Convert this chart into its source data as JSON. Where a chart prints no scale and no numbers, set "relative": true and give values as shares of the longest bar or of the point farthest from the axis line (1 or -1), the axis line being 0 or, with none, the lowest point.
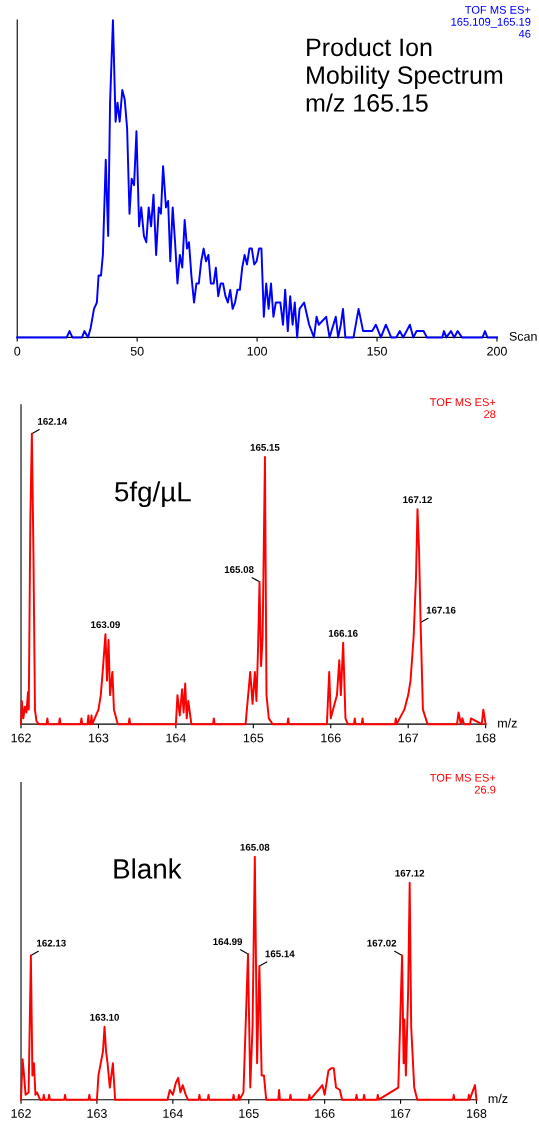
{
  "chart_data": [
    {
      "type": "line",
      "title": "Product Ion\nMobility Spectrum\nm/z 165.15",
      "xlabel": "Scan",
      "relative": true,
      "xlim": [
        0,
        200
      ],
      "xticks": [
        0,
        50,
        100,
        150,
        200
      ],
      "annotations": [
        "TOF MS ES+\n165.109_165.19\n46"
      ],
      "series": [
        {
          "color": "#0000ff",
          "x": [
            0,
            20.6,
            21.8,
            23,
            27,
            28,
            29.5,
            30.6,
            32,
            33.2,
            33.9,
            34.9,
            35.7,
            36.9,
            37.9,
            38.7,
            39.9,
            41,
            41.8,
            42.7,
            43.8,
            44.8,
            45.8,
            46.8,
            47.7,
            48.7,
            49.7,
            50.8,
            51.7,
            52.8,
            53.8,
            54.8,
            55.8,
            56.8,
            57.9,
            59,
            59.9,
            60.8,
            62,
            62.9,
            63.8,
            64.8,
            65.8,
            66.8,
            67.8,
            68.8,
            69.8,
            70.8,
            71.6,
            72.6,
            73.7,
            74.7,
            75.7,
            76.7,
            77.7,
            78.7,
            79.7,
            80.7,
            81.9,
            82.8,
            83.8,
            84.8,
            85.8,
            86.8,
            87.8,
            88.8,
            89.8,
            90.8,
            91.8,
            92.8,
            93.8,
            94.8,
            95.8,
            96.8,
            97.8,
            98.8,
            99.8,
            100.8,
            101.8,
            102.8,
            103.8,
            104.8,
            105.8,
            106.8,
            107.8,
            109.7,
            110.8,
            111.7,
            112.8,
            113.8,
            114.8,
            115.7,
            116.7,
            117.7,
            119.6,
            121.7,
            123.7,
            124.8,
            125.7,
            128.8,
            130.2,
            132.8,
            133.8,
            134.9,
            135.8,
            136.8,
            140.2,
            142.3,
            144.2,
            148,
            149.5,
            151.6,
            153.7,
            155.9,
            158,
            159.5,
            160.9,
            163.7,
            165.1,
            166.5,
            168,
            169.4,
            170.8,
            177.2,
            177.9,
            178.9,
            180.8,
            182.2,
            183.6,
            185.4,
            194,
            195,
            196,
            200
          ],
          "values": [
            0,
            0,
            0.02,
            0,
            0,
            0.02,
            0,
            0.03,
            0.09,
            0.11,
            0.195,
            0.195,
            0.26,
            0.56,
            0.32,
            0.74,
            1.0,
            0.68,
            0.74,
            0.68,
            0.78,
            0.75,
            0.66,
            0.39,
            0.5,
            0.48,
            0.65,
            0.35,
            0.41,
            0.32,
            0.3,
            0.41,
            0.35,
            0.45,
            0.26,
            0.41,
            0.39,
            0.54,
            0.41,
            0.43,
            0.24,
            0.41,
            0.3,
            0.17,
            0.26,
            0.22,
            0.37,
            0.28,
            0.3,
            0.195,
            0.11,
            0.17,
            0.17,
            0.24,
            0.28,
            0.24,
            0.26,
            0.17,
            0.17,
            0.22,
            0.13,
            0.17,
            0.17,
            0.13,
            0.11,
            0.15,
            0.09,
            0.11,
            0.15,
            0.15,
            0.22,
            0.26,
            0.23,
            0.28,
            0.28,
            0.23,
            0.24,
            0.28,
            0.28,
            0.065,
            0.17,
            0.09,
            0.17,
            0.065,
            0.11,
            0.11,
            0.04,
            0.15,
            0.02,
            0.13,
            0.04,
            0.11,
            0,
            0.09,
            0.11,
            0.04,
            0,
            0.065,
            0.04,
            0.065,
            0,
            0.065,
            0,
            0.04,
            0.09,
            0,
            0,
            0.09,
            0.02,
            0.02,
            0.04,
            0,
            0.04,
            0,
            0,
            0.02,
            0,
            0.04,
            0,
            0.02,
            0.02,
            0.02,
            0,
            0,
            0.02,
            0,
            0.02,
            0,
            0.02,
            0,
            0,
            0.02,
            0,
            0
          ]
        }
      ]
    },
    {
      "type": "line",
      "title": "5fg/µL",
      "xlabel": "m/z",
      "relative": true,
      "xlim": [
        162,
        168
      ],
      "xticks": [
        162,
        163,
        164,
        165,
        166,
        167,
        168
      ],
      "annotations": [
        "TOF MS ES+\n28",
        {
          "text": "162.14",
          "x": 162.14,
          "y": 1.0
        },
        {
          "text": "163.09",
          "x": 163.09,
          "y": 0.31
        },
        {
          "text": "165.08",
          "x": 165.08,
          "y": 0.49
        },
        {
          "text": "165.15",
          "x": 165.15,
          "y": 0.92
        },
        {
          "text": "166.16",
          "x": 166.16,
          "y": 0.28
        },
        {
          "text": "167.12",
          "x": 167.12,
          "y": 0.74
        },
        {
          "text": "167.16",
          "x": 167.16,
          "y": 0.35
        }
      ],
      "series": [
        {
          "color": "#ff0000",
          "x": [
            162.0,
            162.01,
            162.03,
            162.05,
            162.07,
            162.09,
            162.1,
            162.12,
            162.14,
            162.16,
            162.18,
            162.2,
            162.23,
            162.33,
            162.34,
            162.35,
            162.49,
            162.5,
            162.51,
            162.77,
            162.78,
            162.79,
            162.86,
            162.87,
            162.88,
            162.9,
            162.91,
            162.92,
            163.0,
            163.03,
            163.06,
            163.09,
            163.11,
            163.13,
            163.15,
            163.18,
            163.2,
            163.25,
            163.39,
            163.4,
            163.41,
            164.0,
            164.02,
            164.05,
            164.08,
            164.1,
            164.12,
            164.14,
            164.16,
            164.2,
            164.48,
            164.49,
            164.5,
            164.9,
            164.96,
            164.99,
            165.02,
            165.04,
            165.06,
            165.08,
            165.1,
            165.12,
            165.15,
            165.17,
            165.2,
            165.25,
            165.44,
            165.45,
            165.46,
            165.95,
            165.98,
            166.0,
            166.08,
            166.11,
            166.13,
            166.16,
            166.19,
            166.22,
            166.3,
            166.31,
            166.32,
            166.4,
            166.41,
            166.42,
            166.83,
            166.84,
            166.85,
            166.95,
            167.0,
            167.03,
            167.07,
            167.1,
            167.12,
            167.14,
            167.16,
            167.19,
            167.25,
            167.63,
            167.65,
            167.68,
            167.7,
            167.72,
            167.8,
            167.81,
            167.95,
            167.97,
            168.0
          ],
          "values": [
            0,
            0.08,
            0.02,
            0.06,
            0.04,
            0.11,
            0.05,
            0.7,
            1.0,
            0.6,
            0.05,
            0.01,
            0,
            0,
            0.02,
            0,
            0,
            0.02,
            0,
            0,
            0.02,
            0,
            0,
            0.03,
            0,
            0,
            0.03,
            0,
            0.05,
            0.1,
            0.2,
            0.31,
            0.15,
            0.29,
            0.1,
            0.18,
            0.05,
            0,
            0,
            0.02,
            0,
            0,
            0.1,
            0.03,
            0.12,
            0.04,
            0.14,
            0.02,
            0.08,
            0,
            0,
            0.02,
            0,
            0,
            0.18,
            0.07,
            0.18,
            0.08,
            0.25,
            0.49,
            0.2,
            0.3,
            0.92,
            0.1,
            0.02,
            0,
            0,
            0.02,
            0,
            0,
            0.18,
            0.02,
            0.1,
            0.22,
            0.1,
            0.28,
            0.02,
            0,
            0,
            0.02,
            0,
            0,
            0.02,
            0,
            0,
            0.02,
            0,
            0.05,
            0.1,
            0.15,
            0.3,
            0.5,
            0.74,
            0.6,
            0.35,
            0.05,
            0,
            0,
            0.04,
            0,
            0.02,
            0,
            0,
            0.02,
            0,
            0.05,
            0
          ]
        }
      ]
    },
    {
      "type": "line",
      "title": "Blank",
      "xlabel": "m/z",
      "relative": true,
      "xlim": [
        162,
        168
      ],
      "xticks": [
        162,
        163,
        164,
        165,
        166,
        167,
        168
      ],
      "annotations": [
        "TOF MS ES+\n26.9",
        {
          "text": "162.13",
          "x": 162.13,
          "y": 0.594
        },
        {
          "text": "163.10",
          "x": 163.1,
          "y": 0.3
        },
        {
          "text": "164.99",
          "x": 164.99,
          "y": 0.6
        },
        {
          "text": "165.08",
          "x": 165.08,
          "y": 1.0
        },
        {
          "text": "165.14",
          "x": 165.14,
          "y": 0.55
        },
        {
          "text": "167.02",
          "x": 167.02,
          "y": 0.594
        },
        {
          "text": "167.12",
          "x": 167.12,
          "y": 0.893
        }
      ],
      "series": [
        {
          "color": "#ff0000",
          "x": [
            162.0,
            162.02,
            162.04,
            162.06,
            162.1,
            162.13,
            162.15,
            162.17,
            162.19,
            162.21,
            162.25,
            162.29,
            162.3,
            162.31,
            162.36,
            162.37,
            162.38,
            162.57,
            162.58,
            162.59,
            162.89,
            162.9,
            162.91,
            163.0,
            163.02,
            163.05,
            163.08,
            163.1,
            163.12,
            163.14,
            163.17,
            163.21,
            163.24,
            163.93,
            163.96,
            164.0,
            164.04,
            164.07,
            164.1,
            164.13,
            164.17,
            164.2,
            164.34,
            164.35,
            164.36,
            164.46,
            164.47,
            164.48,
            164.79,
            164.8,
            164.81,
            164.86,
            164.87,
            164.88,
            164.93,
            164.99,
            165.02,
            165.05,
            165.08,
            165.11,
            165.14,
            165.17,
            165.2,
            165.23,
            165.39,
            165.4,
            165.41,
            165.54,
            165.55,
            165.56,
            165.79,
            165.8,
            165.81,
            165.97,
            166.0,
            166.05,
            166.09,
            166.12,
            166.15,
            166.2,
            166.23,
            166.41,
            166.42,
            166.43,
            166.51,
            166.52,
            166.53,
            166.69,
            166.7,
            166.71,
            166.97,
            167.02,
            167.04,
            167.05,
            167.07,
            167.1,
            167.12,
            167.14,
            167.18,
            167.22,
            167.69,
            167.7,
            167.71,
            167.89,
            167.9,
            167.91,
            167.98,
            168.0
          ],
          "values": [
            0,
            0.167,
            0.1,
            0.02,
            0.03,
            0.594,
            0.1,
            0.15,
            0.02,
            0.03,
            0,
            0,
            0.02,
            0,
            0,
            0.02,
            0,
            0,
            0.02,
            0,
            0,
            0.02,
            0,
            0,
            0.1,
            0.15,
            0.2,
            0.3,
            0.2,
            0.15,
            0.05,
            0.15,
            0,
            0,
            0.04,
            0.02,
            0.07,
            0.09,
            0.03,
            0.06,
            0.02,
            0,
            0,
            0.02,
            0,
            0,
            0.02,
            0,
            0,
            0.02,
            0,
            0,
            0.02,
            0,
            0.03,
            0.6,
            0.05,
            0.3,
            1.0,
            0.15,
            0.55,
            0.1,
            0.1,
            0,
            0,
            0.04,
            0,
            0,
            0.02,
            0,
            0,
            0.02,
            0,
            0.06,
            0.02,
            0.12,
            0.13,
            0.13,
            0.05,
            0.04,
            0,
            0,
            0.02,
            0,
            0,
            0.02,
            0,
            0,
            0.02,
            0,
            0.05,
            0.594,
            0.15,
            0.33,
            0.1,
            0.45,
            0.893,
            0.3,
            0.05,
            0,
            0,
            0.02,
            0,
            0,
            0.02,
            0,
            0.06,
            0
          ]
        }
      ]
    }
  ]
}
